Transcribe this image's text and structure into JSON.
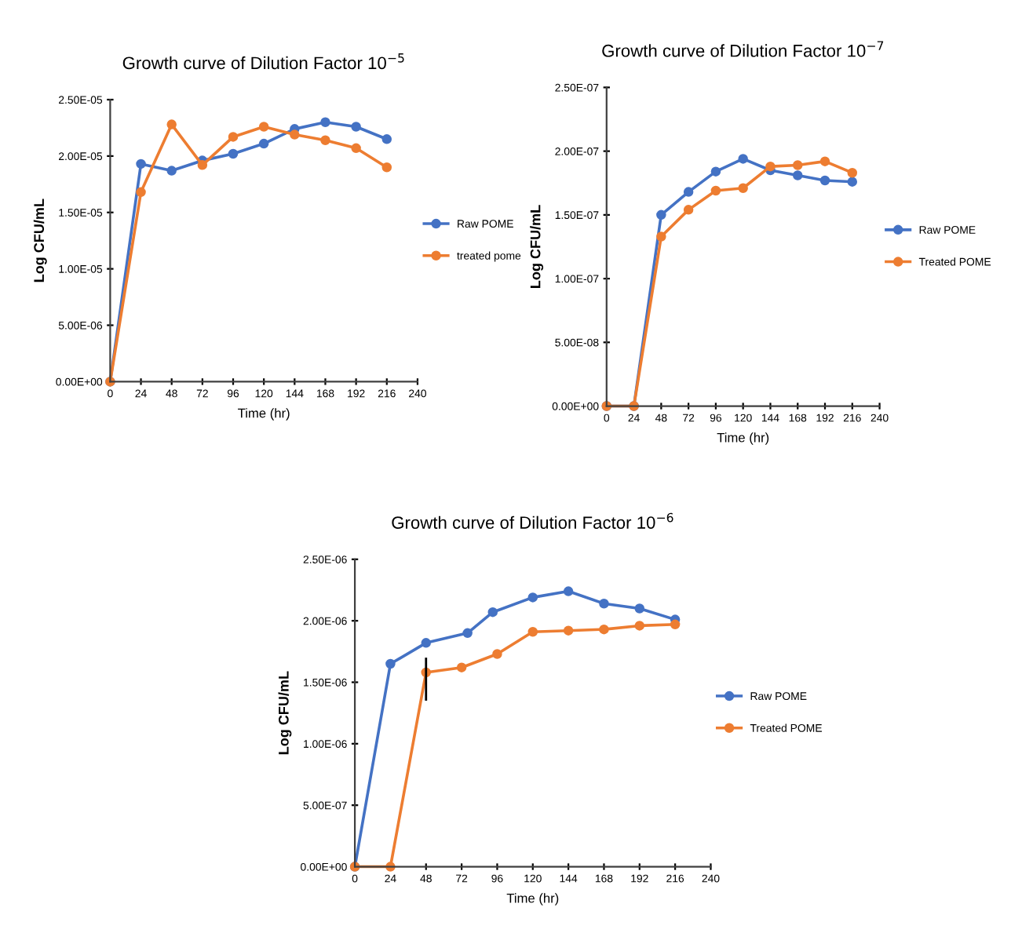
{
  "chart_data": [
    {
      "type": "line",
      "title": "Growth curve of Dilution Factor 10$^{−5}$",
      "xlabel": "Time (hr)",
      "ylabel": "Log CFU/mL",
      "marker": "circle",
      "legend": "right",
      "grid": false,
      "xlim": [
        0,
        240
      ],
      "xticks": [
        0,
        24,
        48,
        72,
        96,
        120,
        144,
        168,
        192,
        216,
        240
      ],
      "ylim": [
        0,
        2.5e-05
      ],
      "yticks": [
        {
          "value": 0,
          "label": "0.00E+00"
        },
        {
          "value": 5e-06,
          "label": "5.00E-06"
        },
        {
          "value": 1e-05,
          "label": "1.00E-05"
        },
        {
          "value": 1.5e-05,
          "label": "1.50E-05"
        },
        {
          "value": 2e-05,
          "label": "2.00E-05"
        },
        {
          "value": 2.5e-05,
          "label": "2.50E-05"
        }
      ],
      "x": [
        0,
        24,
        48,
        72,
        96,
        120,
        144,
        168,
        192,
        216
      ],
      "series": [
        {
          "name": "Raw POME",
          "color": "#4472c4",
          "values": [
            0,
            1.93e-05,
            1.87e-05,
            1.96e-05,
            2.02e-05,
            2.11e-05,
            2.24e-05,
            2.3e-05,
            2.26e-05,
            2.15e-05
          ]
        },
        {
          "name": "treated pome",
          "color": "#ed7d31",
          "values": [
            0,
            1.68e-05,
            2.28e-05,
            1.92e-05,
            2.17e-05,
            2.26e-05,
            2.19e-05,
            2.14e-05,
            2.07e-05,
            1.9e-05
          ]
        }
      ]
    },
    {
      "type": "line",
      "title": "Growth curve of Dilution Factor 10$^{−7}$",
      "xlabel": "Time (hr)",
      "ylabel": "Log CFU/mL",
      "marker": "circle",
      "legend": "right",
      "grid": false,
      "xlim": [
        0,
        240
      ],
      "xticks": [
        0,
        24,
        48,
        72,
        96,
        120,
        144,
        168,
        192,
        216,
        240
      ],
      "ylim": [
        0,
        2.5e-07
      ],
      "yticks": [
        {
          "value": 0,
          "label": "0.00E+00"
        },
        {
          "value": 5e-08,
          "label": "5.00E-08"
        },
        {
          "value": 1e-07,
          "label": "1.00E-07"
        },
        {
          "value": 1.5e-07,
          "label": "1.50E-07"
        },
        {
          "value": 2e-07,
          "label": "2.00E-07"
        },
        {
          "value": 2.5e-07,
          "label": "2.50E-07"
        }
      ],
      "x": [
        0,
        24,
        48,
        72,
        96,
        120,
        144,
        168,
        192,
        216
      ],
      "series": [
        {
          "name": "Raw POME",
          "color": "#4472c4",
          "values": [
            0,
            0,
            1.5e-07,
            1.68e-07,
            1.84e-07,
            1.94e-07,
            1.85e-07,
            1.81e-07,
            1.77e-07,
            1.76e-07
          ]
        },
        {
          "name": "Treated POME",
          "color": "#ed7d31",
          "values": [
            0,
            0,
            1.33e-07,
            1.54e-07,
            1.69e-07,
            1.71e-07,
            1.88e-07,
            1.89e-07,
            1.92e-07,
            1.83e-07
          ]
        }
      ]
    },
    {
      "type": "line",
      "title": "Growth curve of Dilution Factor 10$^{−6}$",
      "xlabel": "Time (hr)",
      "ylabel": "Log CFU/mL",
      "marker": "circle",
      "legend": "right",
      "grid": false,
      "xlim": [
        0,
        240
      ],
      "xticks": [
        0,
        24,
        48,
        72,
        96,
        120,
        144,
        168,
        192,
        216,
        240
      ],
      "ylim": [
        0,
        2.5e-06
      ],
      "yticks": [
        {
          "value": 0,
          "label": "0.00E+00"
        },
        {
          "value": 5e-07,
          "label": "5.00E-07"
        },
        {
          "value": 1e-06,
          "label": "1.00E-06"
        },
        {
          "value": 1.5e-06,
          "label": "1.50E-06"
        },
        {
          "value": 2e-06,
          "label": "2.00E-06"
        },
        {
          "value": 2.5e-06,
          "label": "2.50E-06"
        }
      ],
      "series": [
        {
          "name": "Raw POME",
          "color": "#4472c4",
          "x": [
            0,
            24,
            48,
            76,
            93,
            120,
            144,
            168,
            192,
            216
          ],
          "values": [
            0,
            1.65e-06,
            1.82e-06,
            1.9e-06,
            2.07e-06,
            2.19e-06,
            2.24e-06,
            2.14e-06,
            2.1e-06,
            2.01e-06
          ]
        },
        {
          "name": "Treated POME",
          "color": "#ed7d31",
          "x": [
            0,
            24,
            48,
            72,
            96,
            120,
            144,
            168,
            192,
            216
          ],
          "values": [
            0,
            0,
            1.58e-06,
            1.62e-06,
            1.73e-06,
            1.91e-06,
            1.92e-06,
            1.93e-06,
            1.96e-06,
            1.97e-06
          ],
          "errors": [
            null,
            null,
            [
              1.35e-06,
              1.7e-06
            ],
            null,
            null,
            null,
            null,
            null,
            null,
            null
          ]
        }
      ]
    }
  ]
}
